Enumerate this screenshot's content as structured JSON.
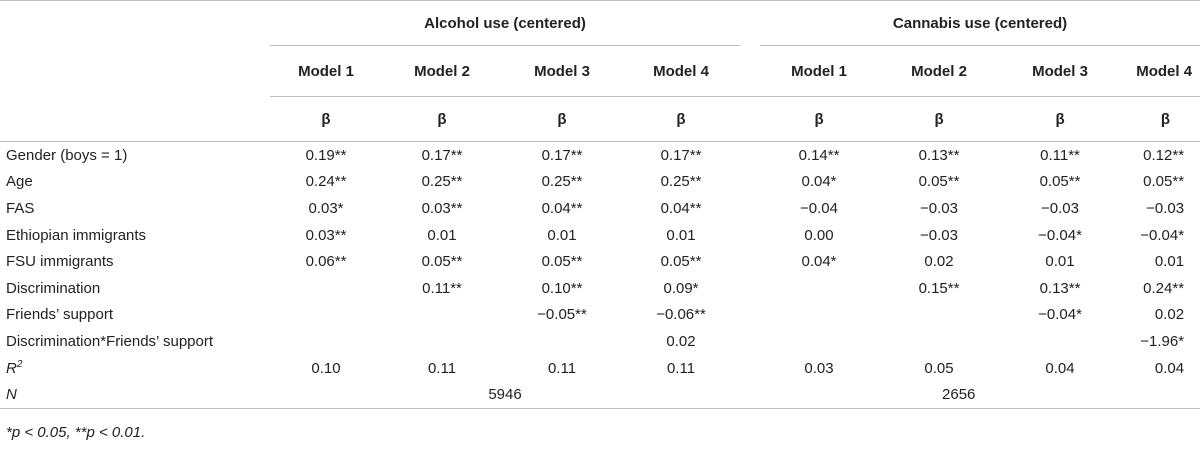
{
  "groups": {
    "alcohol": "Alcohol use (centered)",
    "cannabis": "Cannabis use (centered)"
  },
  "models": [
    "Model 1",
    "Model 2",
    "Model 3",
    "Model 4"
  ],
  "beta": "β",
  "rows": [
    {
      "label": "Gender (boys = 1)",
      "a": [
        "0.19**",
        "0.17**",
        "0.17**",
        "0.17**"
      ],
      "c": [
        "0.14**",
        "0.13**",
        "0.11**",
        "0.12**"
      ]
    },
    {
      "label": "Age",
      "a": [
        "0.24**",
        "0.25**",
        "0.25**",
        "0.25**"
      ],
      "c": [
        "0.04*",
        "0.05**",
        "0.05**",
        "0.05**"
      ]
    },
    {
      "label": "FAS",
      "a": [
        "0.03*",
        "0.03**",
        "0.04**",
        "0.04**"
      ],
      "c": [
        "−0.04",
        "−0.03",
        "−0.03",
        "−0.03"
      ]
    },
    {
      "label": "Ethiopian immigrants",
      "a": [
        "0.03**",
        "0.01",
        "0.01",
        "0.01"
      ],
      "c": [
        "0.00",
        "−0.03",
        "−0.04*",
        "−0.04*"
      ]
    },
    {
      "label": "FSU immigrants",
      "a": [
        "0.06**",
        "0.05**",
        "0.05**",
        "0.05**"
      ],
      "c": [
        "0.04*",
        "0.02",
        "0.01",
        "0.01"
      ]
    },
    {
      "label": "Discrimination",
      "a": [
        "",
        "0.11**",
        "0.10**",
        "0.09*"
      ],
      "c": [
        "",
        "0.15**",
        "0.13**",
        "0.24**"
      ]
    },
    {
      "label": "Friends’ support",
      "a": [
        "",
        "",
        "−0.05**",
        "−0.06**"
      ],
      "c": [
        "",
        "",
        "−0.04*",
        "0.02"
      ]
    },
    {
      "label": "Discrimination*Friends’ support",
      "a": [
        "",
        "",
        "",
        "0.02"
      ],
      "c": [
        "",
        "",
        "",
        "−1.96*"
      ]
    }
  ],
  "r2": {
    "label": "R",
    "sup": "2",
    "a": [
      "0.10",
      "0.11",
      "0.11",
      "0.11"
    ],
    "c": [
      "0.03",
      "0.05",
      "0.04",
      "0.04"
    ]
  },
  "n": {
    "label": "N",
    "alcohol": "5946",
    "cannabis": "2656"
  },
  "footnote": "*p < 0.05, **p < 0.01."
}
